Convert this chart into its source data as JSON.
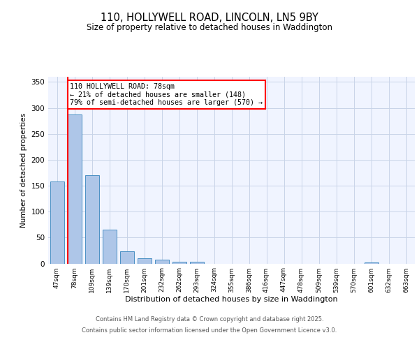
{
  "title_line1": "110, HOLLYWELL ROAD, LINCOLN, LN5 9BY",
  "title_line2": "Size of property relative to detached houses in Waddington",
  "xlabel": "Distribution of detached houses by size in Waddington",
  "ylabel": "Number of detached properties",
  "categories": [
    "47sqm",
    "78sqm",
    "109sqm",
    "139sqm",
    "170sqm",
    "201sqm",
    "232sqm",
    "262sqm",
    "293sqm",
    "324sqm",
    "355sqm",
    "386sqm",
    "416sqm",
    "447sqm",
    "478sqm",
    "509sqm",
    "539sqm",
    "570sqm",
    "601sqm",
    "632sqm",
    "663sqm"
  ],
  "values": [
    158,
    287,
    170,
    65,
    24,
    10,
    7,
    3,
    3,
    0,
    0,
    0,
    0,
    0,
    0,
    0,
    0,
    0,
    2,
    0,
    0
  ],
  "bar_color": "#aec6e8",
  "bar_edge_color": "#4a90c4",
  "red_line_bar_index": 1,
  "annotation_title": "110 HOLLYWELL ROAD: 78sqm",
  "annotation_line2": "← 21% of detached houses are smaller (148)",
  "annotation_line3": "79% of semi-detached houses are larger (570) →",
  "ylim": [
    0,
    360
  ],
  "yticks": [
    0,
    50,
    100,
    150,
    200,
    250,
    300,
    350
  ],
  "background_color": "#f0f4ff",
  "grid_color": "#c8d4e8",
  "footer_line1": "Contains HM Land Registry data © Crown copyright and database right 2025.",
  "footer_line2": "Contains public sector information licensed under the Open Government Licence v3.0."
}
